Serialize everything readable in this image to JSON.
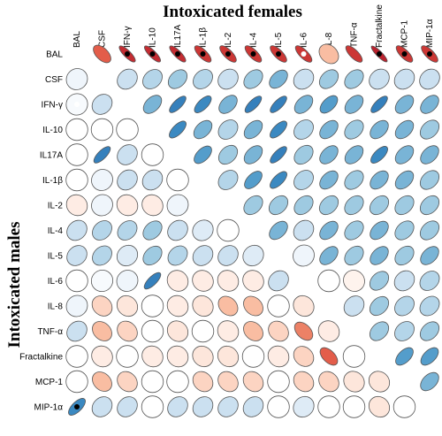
{
  "chart_data": {
    "type": "heatmap",
    "subtype": "correlation-ellipse-matrix",
    "title_top": "Intoxicated females",
    "title_left": "Intoxicated males",
    "upper_triangle": "Intoxicated females",
    "lower_triangle": "Intoxicated males",
    "variables": [
      "BAL",
      "CSF",
      "IFN-γ",
      "IL-10",
      "IL17A",
      "IL-1β",
      "IL-2",
      "IL-4",
      "IL-5",
      "IL-6",
      "IL-8",
      "TNF-α",
      "Fractalkine",
      "MCP-1",
      "MIP-1α"
    ],
    "value_range": [
      -1,
      1
    ],
    "colors": {
      "positive": "#2166ac",
      "negative": "#b2182b",
      "neutral": "#ffffff",
      "outline": "#555555"
    },
    "significance_markers": {
      "black_dot": "filled marker",
      "white_dot": "open marker"
    },
    "matrix": [
      [
        null,
        -0.7,
        -0.9,
        -0.9,
        -0.9,
        -0.85,
        -0.85,
        -0.85,
        -0.85,
        -0.85,
        -0.4,
        -0.85,
        -0.95,
        -0.85,
        -0.85
      ],
      [
        0.1,
        null,
        0.3,
        0.4,
        0.5,
        0.4,
        0.3,
        0.5,
        0.6,
        0.3,
        0.5,
        0.5,
        0.3,
        0.3,
        0.3
      ],
      [
        0.05,
        0.3,
        null,
        0.6,
        0.85,
        0.8,
        0.6,
        0.85,
        0.85,
        0.6,
        0.7,
        0.6,
        0.85,
        0.6,
        0.6
      ],
      [
        0.0,
        0.0,
        0.0,
        null,
        0.8,
        0.6,
        0.4,
        0.6,
        0.8,
        0.4,
        0.6,
        0.5,
        0.6,
        0.6,
        0.5
      ],
      [
        0.0,
        0.85,
        0.3,
        0.0,
        null,
        0.7,
        0.5,
        0.6,
        0.85,
        0.5,
        0.6,
        0.6,
        0.8,
        0.6,
        0.6
      ],
      [
        0.0,
        0.1,
        0.3,
        0.3,
        0.0,
        null,
        0.4,
        0.7,
        0.8,
        0.4,
        0.6,
        0.5,
        0.6,
        0.6,
        0.5
      ],
      [
        -0.15,
        0.1,
        -0.15,
        -0.15,
        0.1,
        null,
        null,
        0.5,
        0.5,
        0.5,
        0.5,
        0.5,
        0.5,
        0.5,
        0.5
      ],
      [
        0.3,
        0.4,
        0.4,
        0.5,
        0.3,
        0.2,
        0.0,
        null,
        0.6,
        0.3,
        0.6,
        0.5,
        0.6,
        0.5,
        0.5
      ],
      [
        0.3,
        0.4,
        0.2,
        0.5,
        0.4,
        0.3,
        0.3,
        0.2,
        null,
        0.1,
        0.6,
        0.5,
        0.6,
        0.5,
        0.6
      ],
      [
        0.0,
        0.05,
        0.1,
        0.85,
        -0.15,
        -0.15,
        -0.15,
        -0.15,
        0.3,
        null,
        0.0,
        -0.1,
        0.5,
        0.3,
        0.4
      ],
      [
        0.1,
        -0.3,
        -0.2,
        0.0,
        -0.15,
        -0.2,
        -0.4,
        -0.4,
        0.0,
        -0.2,
        null,
        0.3,
        0.5,
        0.4,
        0.4
      ],
      [
        0.3,
        -0.4,
        -0.3,
        0.0,
        -0.2,
        0.0,
        -0.15,
        -0.4,
        -0.3,
        -0.6,
        -0.15,
        null,
        0.5,
        0.4,
        0.5
      ],
      [
        0.0,
        -0.15,
        0.0,
        -0.15,
        -0.15,
        -0.2,
        -0.2,
        0.0,
        -0.15,
        -0.3,
        -0.7,
        0.0,
        null,
        0.7,
        0.7
      ],
      [
        0.0,
        -0.4,
        -0.3,
        0.0,
        0.0,
        -0.3,
        -0.3,
        -0.3,
        0.0,
        -0.3,
        -0.3,
        -0.2,
        -0.2,
        null,
        0.6
      ],
      [
        0.8,
        0.3,
        0.3,
        0.0,
        0.3,
        0.3,
        0.3,
        0.3,
        0.0,
        0.2,
        0.0,
        0.0,
        -0.2,
        0.0,
        null
      ]
    ],
    "markers": [
      {
        "row": 0,
        "col": 2,
        "type": "black_dot"
      },
      {
        "row": 0,
        "col": 3,
        "type": "black_dot"
      },
      {
        "row": 0,
        "col": 4,
        "type": "black_dot"
      },
      {
        "row": 0,
        "col": 5,
        "type": "black_dot"
      },
      {
        "row": 0,
        "col": 6,
        "type": "black_dot"
      },
      {
        "row": 0,
        "col": 7,
        "type": "black_dot"
      },
      {
        "row": 0,
        "col": 8,
        "type": "black_dot"
      },
      {
        "row": 0,
        "col": 9,
        "type": "white_dot"
      },
      {
        "row": 0,
        "col": 12,
        "type": "black_dot"
      },
      {
        "row": 0,
        "col": 13,
        "type": "black_dot"
      },
      {
        "row": 0,
        "col": 14,
        "type": "black_dot"
      },
      {
        "row": 2,
        "col": 0,
        "type": "white_dot"
      },
      {
        "row": 14,
        "col": 0,
        "type": "black_dot"
      }
    ]
  }
}
